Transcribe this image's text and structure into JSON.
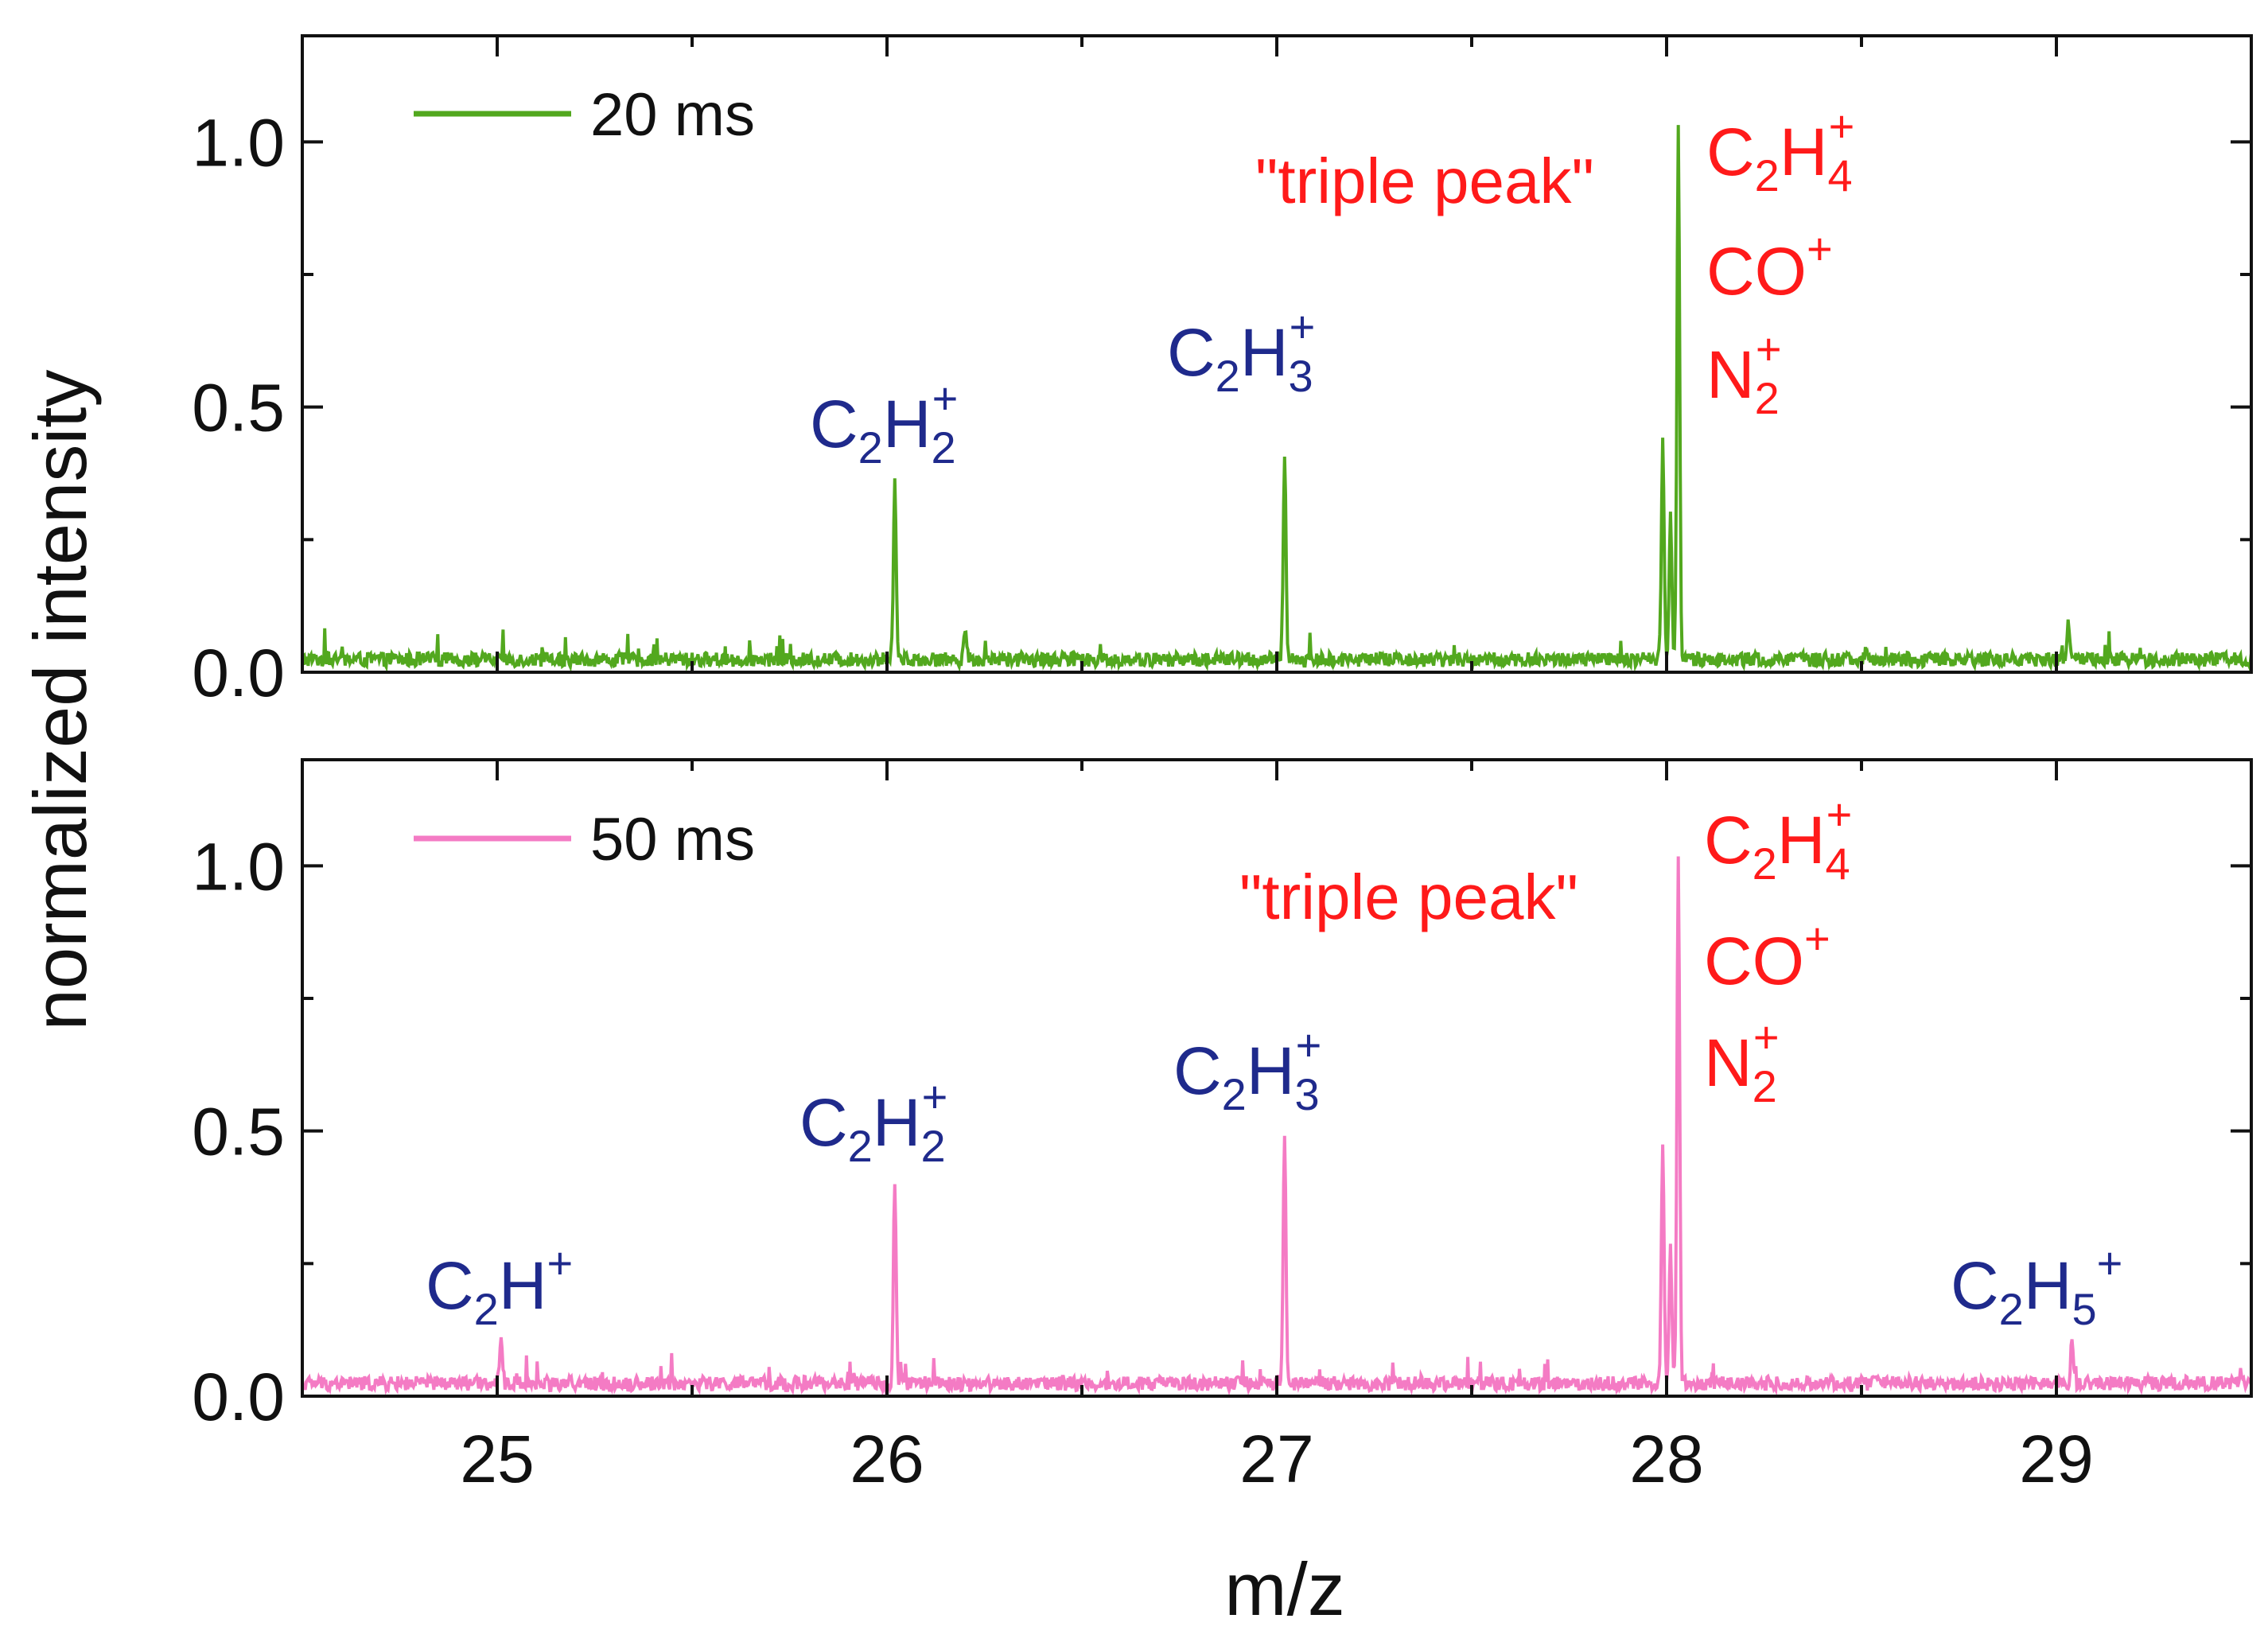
{
  "chart_data": {
    "type": "line",
    "xlabel": "m/z",
    "ylabel": "normalized intensity",
    "xlim": [
      24.5,
      29.5
    ],
    "x_ticks": [
      "25",
      "26",
      "27",
      "28",
      "29"
    ],
    "colors": {
      "blue_label": "#1f2a8c",
      "red_label": "#ff1a1a",
      "axis": "#111111"
    },
    "panels": [
      {
        "legend": "20 ms",
        "color": "#52a81e",
        "ylim": [
          0,
          1.2
        ],
        "y_ticks": [
          "0.0",
          "0.5",
          "1.0"
        ],
        "baseline": 0.03,
        "peaks": [
          {
            "x": 26.02,
            "y": 0.35,
            "labeled": true
          },
          {
            "x": 27.02,
            "y": 0.39,
            "labeled": true
          },
          {
            "x": 27.99,
            "y": 0.41,
            "labeled": false
          },
          {
            "x": 28.01,
            "y": 0.28,
            "labeled": false
          },
          {
            "x": 28.03,
            "y": 1.0,
            "labeled": true
          },
          {
            "x": 29.03,
            "y": 0.07,
            "labeled": false
          },
          {
            "x": 26.2,
            "y": 0.06,
            "labeled": false
          }
        ],
        "annotations": {
          "c2h2": {
            "base": "C",
            "sub1": "2",
            "mid": "H",
            "sub2": "2",
            "sup": "+"
          },
          "c2h3": {
            "base": "C",
            "sub1": "2",
            "mid": "H",
            "sub2": "3",
            "sup": "+"
          },
          "c2h4": {
            "base": "C",
            "sub1": "2",
            "mid": "H",
            "sub2": "4",
            "sup": "+"
          },
          "co": {
            "base": "CO",
            "sup": "+"
          },
          "n2": {
            "base": "N",
            "sub": "2",
            "sup": "+"
          },
          "triple": "\"triple peak\""
        }
      },
      {
        "legend": "50 ms",
        "color": "#f47bc4",
        "ylim": [
          0,
          1.2
        ],
        "y_ticks": [
          "0.0",
          "0.5",
          "1.0"
        ],
        "baseline": 0.03,
        "peaks": [
          {
            "x": 25.01,
            "y": 0.08,
            "labeled": true
          },
          {
            "x": 26.02,
            "y": 0.38,
            "labeled": true
          },
          {
            "x": 27.02,
            "y": 0.48,
            "labeled": true
          },
          {
            "x": 27.99,
            "y": 0.45,
            "labeled": false
          },
          {
            "x": 28.01,
            "y": 0.25,
            "labeled": false
          },
          {
            "x": 28.03,
            "y": 1.0,
            "labeled": true
          },
          {
            "x": 29.04,
            "y": 0.08,
            "labeled": true
          }
        ],
        "annotations": {
          "c2h": {
            "base": "C",
            "sub1": "2",
            "mid": "H",
            "sup": "+"
          },
          "c2h2": {
            "base": "C",
            "sub1": "2",
            "mid": "H",
            "sub2": "2",
            "sup": "+"
          },
          "c2h3": {
            "base": "C",
            "sub1": "2",
            "mid": "H",
            "sub2": "3",
            "sup": "+"
          },
          "c2h4": {
            "base": "C",
            "sub1": "2",
            "mid": "H",
            "sub2": "4",
            "sup": "+"
          },
          "co": {
            "base": "CO",
            "sup": "+"
          },
          "n2": {
            "base": "N",
            "sub": "2",
            "sup": "+"
          },
          "c2h5": {
            "base": "C",
            "sub1": "2",
            "mid": "H",
            "sub2": "5",
            "sup": "+"
          },
          "triple": "\"triple peak\""
        }
      }
    ]
  }
}
